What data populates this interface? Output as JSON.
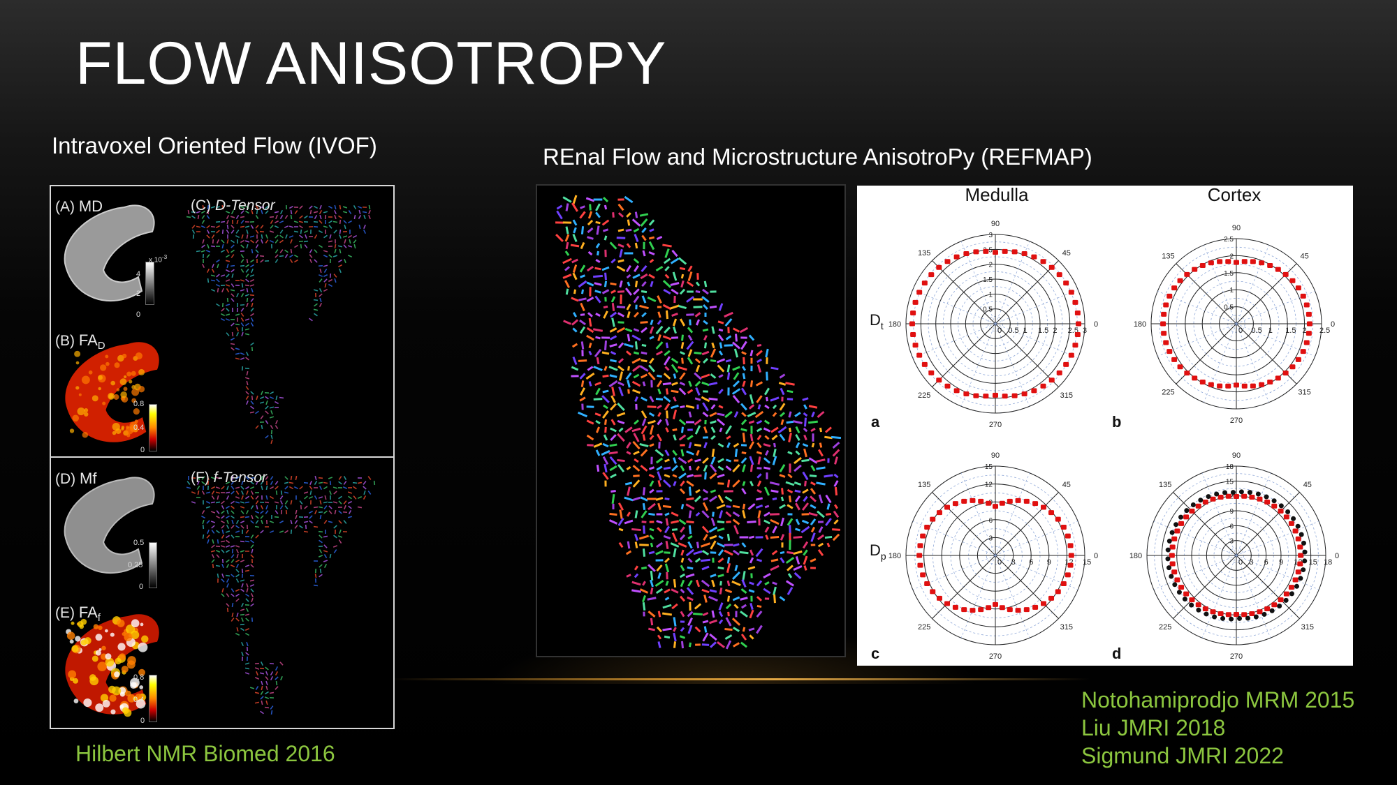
{
  "slide": {
    "title": "FLOW ANISOTROPY",
    "left_heading": "Intravoxel Oriented Flow (IVOF)",
    "right_heading": "REnal Flow and Microstructure AnisotroPy (REFMAP)",
    "left_citation": "Hilbert  NMR Biomed 2016",
    "right_citations": [
      "Notohamiprodjo MRM 2015",
      "Liu JMRI 2018",
      "Sigmund JMRI 2022"
    ]
  },
  "ivof_figure": {
    "labels": {
      "a": "(A)",
      "a_name": "MD",
      "b": "(B)",
      "b_name": "FA",
      "b_sub": "D",
      "c": "(C)",
      "c_name": "D-Tensor",
      "d": "(D)",
      "d_name": "Mf",
      "e": "(E)",
      "e_name": "FA",
      "e_sub": "f",
      "f": "(F)",
      "f_name": "f-Tensor"
    },
    "colorbars": {
      "md": {
        "exp": "x 10",
        "exp_sup": "-3",
        "ticks": [
          "4",
          "2",
          "0"
        ]
      },
      "fad": {
        "ticks": [
          "0.8",
          "0.4",
          "0"
        ]
      },
      "mf": {
        "ticks": [
          "0.5",
          "0.25",
          "0"
        ]
      },
      "faf": {
        "ticks": [
          "0.8",
          "0.4",
          "0"
        ]
      }
    }
  },
  "polar_figure": {
    "col_titles": [
      "Medulla",
      "Cortex"
    ],
    "row_labels": [
      {
        "main": "D",
        "sub": "t"
      },
      {
        "main": "D",
        "sub": "p"
      }
    ],
    "angles": [
      "90",
      "45",
      "0",
      "315",
      "270",
      "225",
      "180",
      "135"
    ],
    "panels": [
      {
        "letter": "a",
        "ticks": [
          "0",
          "0.5",
          "1",
          "1.5",
          "2",
          "2.5",
          "3"
        ],
        "rticks": [
          "0.5",
          "1",
          "1.5",
          "2",
          "2.5",
          "3"
        ]
      },
      {
        "letter": "b",
        "ticks": [
          "0",
          "0.5",
          "1",
          "1.5",
          "2",
          "2.5"
        ],
        "rticks": [
          "0.5",
          "1",
          "1.5",
          "2",
          "2.5"
        ]
      },
      {
        "letter": "c",
        "ticks": [
          "0",
          "3",
          "6",
          "9",
          "12",
          "15"
        ],
        "rticks": [
          "3",
          "6",
          "9",
          "12",
          "15"
        ]
      },
      {
        "letter": "d",
        "ticks": [
          "0",
          "3",
          "6",
          "9",
          "12",
          "15",
          "18"
        ],
        "rticks": [
          "3",
          "6",
          "9",
          "12",
          "15",
          "18"
        ]
      }
    ],
    "colors": {
      "marker": "#e01010",
      "grid": "#222222",
      "minor": "#8fa8d8"
    }
  }
}
